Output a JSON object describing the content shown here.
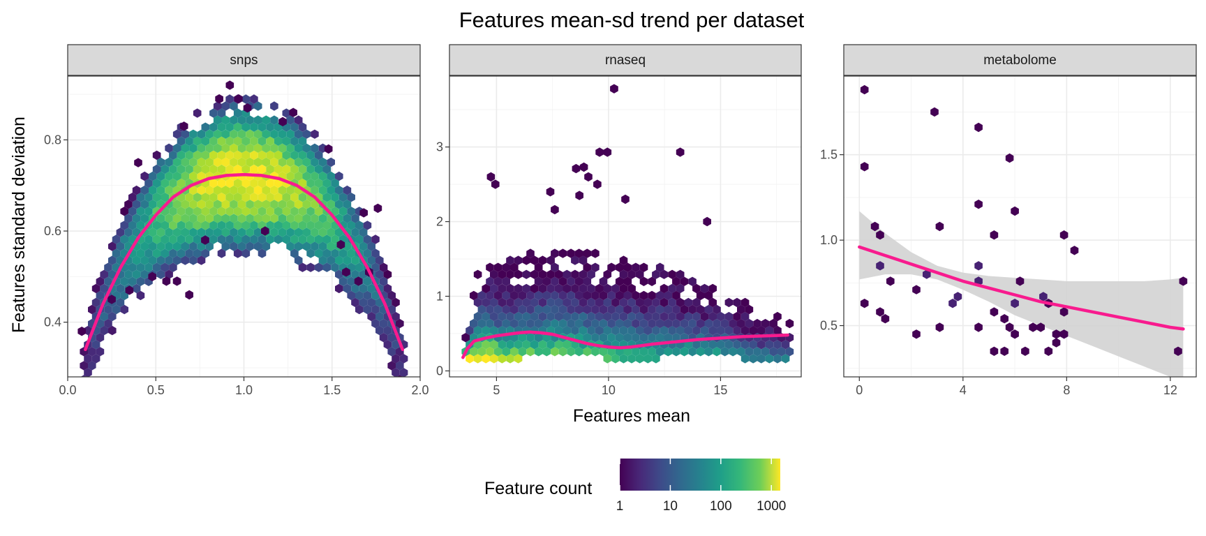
{
  "chart_data": {
    "type": "hexbin",
    "title": "Features mean-sd trend per dataset",
    "xlabel": "Features mean",
    "ylabel": "Features standard deviation",
    "legend": {
      "title": "Feature count",
      "position": "bottom",
      "scale": "log10",
      "breaks": [
        "1",
        "10",
        "100",
        "1000"
      ],
      "range": [
        1,
        1500
      ],
      "palette": [
        "#440154",
        "#3b528b",
        "#21908c",
        "#5dc963",
        "#fde725"
      ]
    },
    "trend_color": "#f81b8e",
    "ribbon_color": "#d3d3d3",
    "panels": [
      {
        "name": "snps",
        "xlim": [
          0,
          2
        ],
        "ylim": [
          0.28,
          0.94
        ],
        "xticks": [
          "0.0",
          "0.5",
          "1.0",
          "1.5",
          "2.0"
        ],
        "xtick_values": [
          0,
          0.5,
          1.0,
          1.5,
          2.0
        ],
        "yticks": [
          "0.4",
          "0.6",
          "0.8"
        ],
        "ytick_values": [
          0.4,
          0.6,
          0.8
        ],
        "trend": {
          "x": [
            0.1,
            0.2,
            0.3,
            0.4,
            0.5,
            0.6,
            0.7,
            0.8,
            0.9,
            1.0,
            1.1,
            1.2,
            1.3,
            1.4,
            1.5,
            1.6,
            1.7,
            1.8,
            1.9
          ],
          "y": [
            0.34,
            0.44,
            0.52,
            0.585,
            0.635,
            0.675,
            0.7,
            0.715,
            0.722,
            0.724,
            0.722,
            0.715,
            0.7,
            0.675,
            0.635,
            0.585,
            0.52,
            0.44,
            0.34
          ]
        },
        "ribbon": null,
        "hex_fill": "parabolic band around y = 2*sqrt(x/2*(1-x/2)), count peaks near x = 1",
        "outliers": [
          {
            "x": 0.92,
            "y": 0.92,
            "count": 1
          },
          {
            "x": 0.86,
            "y": 0.89,
            "count": 1
          },
          {
            "x": 0.97,
            "y": 0.89,
            "count": 1
          },
          {
            "x": 1.02,
            "y": 0.87,
            "count": 1
          },
          {
            "x": 1.28,
            "y": 0.86,
            "count": 1
          },
          {
            "x": 1.22,
            "y": 0.84,
            "count": 1
          },
          {
            "x": 0.66,
            "y": 0.83,
            "count": 1
          },
          {
            "x": 1.48,
            "y": 0.78,
            "count": 1
          },
          {
            "x": 0.4,
            "y": 0.75,
            "count": 1
          },
          {
            "x": 0.48,
            "y": 0.5,
            "count": 1
          },
          {
            "x": 0.56,
            "y": 0.49,
            "count": 1
          },
          {
            "x": 0.62,
            "y": 0.49,
            "count": 1
          },
          {
            "x": 0.69,
            "y": 0.46,
            "count": 1
          },
          {
            "x": 0.35,
            "y": 0.47,
            "count": 1
          },
          {
            "x": 0.78,
            "y": 0.58,
            "count": 1
          },
          {
            "x": 1.58,
            "y": 0.51,
            "count": 1
          },
          {
            "x": 1.65,
            "y": 0.49,
            "count": 1
          },
          {
            "x": 1.71,
            "y": 0.51,
            "count": 1
          },
          {
            "x": 1.76,
            "y": 0.65,
            "count": 1
          },
          {
            "x": 1.68,
            "y": 0.64,
            "count": 1
          },
          {
            "x": 1.12,
            "y": 0.6,
            "count": 1
          },
          {
            "x": 0.25,
            "y": 0.45,
            "count": 1
          },
          {
            "x": 0.08,
            "y": 0.38,
            "count": 1
          },
          {
            "x": 1.55,
            "y": 0.57,
            "count": 1
          }
        ]
      },
      {
        "name": "rnaseq",
        "xlim": [
          2.9,
          18.6
        ],
        "ylim": [
          -0.08,
          3.95
        ],
        "xticks": [
          "5",
          "10",
          "15"
        ],
        "xtick_values": [
          5,
          10,
          15
        ],
        "yticks": [
          "0",
          "1",
          "2",
          "3"
        ],
        "ytick_values": [
          0,
          1,
          2,
          3
        ],
        "trend": {
          "x": [
            3.5,
            3.7,
            4.0,
            4.5,
            5.0,
            5.5,
            6.0,
            6.5,
            7.0,
            7.5,
            8.0,
            8.5,
            9.0,
            9.5,
            10.0,
            10.5,
            11.0,
            11.5,
            12.0,
            13.0,
            14.0,
            15.0,
            16.0,
            17.0,
            18.0
          ],
          "y": [
            0.18,
            0.3,
            0.4,
            0.44,
            0.47,
            0.49,
            0.51,
            0.52,
            0.51,
            0.49,
            0.45,
            0.41,
            0.37,
            0.34,
            0.32,
            0.31,
            0.32,
            0.34,
            0.36,
            0.39,
            0.42,
            0.44,
            0.46,
            0.47,
            0.48
          ]
        },
        "ribbon": null,
        "hex_fill": "dense band near the trend with sparse scatter above, up to sd about 3",
        "outliers": [
          {
            "x": 10.25,
            "y": 3.78,
            "count": 1
          },
          {
            "x": 9.6,
            "y": 2.93,
            "count": 1
          },
          {
            "x": 9.95,
            "y": 2.93,
            "count": 1
          },
          {
            "x": 13.2,
            "y": 2.93,
            "count": 1
          },
          {
            "x": 8.9,
            "y": 2.73,
            "count": 1
          },
          {
            "x": 4.75,
            "y": 2.6,
            "count": 1
          },
          {
            "x": 4.95,
            "y": 2.5,
            "count": 1
          },
          {
            "x": 8.55,
            "y": 2.71,
            "count": 1
          },
          {
            "x": 9.1,
            "y": 2.6,
            "count": 1
          },
          {
            "x": 9.5,
            "y": 2.5,
            "count": 1
          },
          {
            "x": 7.4,
            "y": 2.4,
            "count": 1
          },
          {
            "x": 8.7,
            "y": 2.35,
            "count": 1
          },
          {
            "x": 10.75,
            "y": 2.3,
            "count": 1
          },
          {
            "x": 7.6,
            "y": 2.16,
            "count": 1
          },
          {
            "x": 14.4,
            "y": 2.0,
            "count": 1
          }
        ]
      },
      {
        "name": "metabolome",
        "xlim": [
          -0.6,
          13.0
        ],
        "ylim": [
          0.2,
          1.96
        ],
        "xticks": [
          "0",
          "4",
          "8",
          "12"
        ],
        "xtick_values": [
          0,
          4,
          8,
          12
        ],
        "yticks": [
          "0.5",
          "1.0",
          "1.5"
        ],
        "ytick_values": [
          0.5,
          1.0,
          1.5
        ],
        "trend": {
          "x": [
            0,
            1,
            2,
            3,
            4,
            5,
            6,
            7,
            8,
            9,
            10,
            11,
            12,
            12.5
          ],
          "y": [
            0.96,
            0.91,
            0.86,
            0.81,
            0.76,
            0.72,
            0.68,
            0.64,
            0.61,
            0.58,
            0.55,
            0.52,
            0.49,
            0.48
          ]
        },
        "ribbon": {
          "x": [
            0,
            1,
            2,
            3,
            4,
            5,
            6,
            7,
            8,
            9,
            10,
            11,
            12,
            12.5
          ],
          "lower": [
            0.77,
            0.8,
            0.8,
            0.77,
            0.71,
            0.64,
            0.56,
            0.5,
            0.44,
            0.38,
            0.32,
            0.26,
            0.2,
            0.17
          ],
          "upper": [
            1.17,
            1.04,
            0.93,
            0.85,
            0.81,
            0.79,
            0.78,
            0.77,
            0.76,
            0.76,
            0.76,
            0.76,
            0.77,
            0.78
          ]
        },
        "hex_fill": "sparse scatter of single features",
        "outliers": [
          {
            "x": 0.2,
            "y": 1.88,
            "count": 1
          },
          {
            "x": 0.2,
            "y": 1.43,
            "count": 1
          },
          {
            "x": 2.9,
            "y": 1.75,
            "count": 1
          },
          {
            "x": 4.6,
            "y": 1.66,
            "count": 1
          },
          {
            "x": 5.8,
            "y": 1.48,
            "count": 1
          },
          {
            "x": 4.6,
            "y": 1.21,
            "count": 1
          },
          {
            "x": 6.0,
            "y": 1.17,
            "count": 1
          },
          {
            "x": 0.6,
            "y": 1.08,
            "count": 1
          },
          {
            "x": 3.1,
            "y": 1.08,
            "count": 1
          },
          {
            "x": 0.8,
            "y": 1.03,
            "count": 1
          },
          {
            "x": 5.2,
            "y": 1.03,
            "count": 1
          },
          {
            "x": 7.9,
            "y": 1.03,
            "count": 1
          },
          {
            "x": 8.3,
            "y": 0.94,
            "count": 1
          },
          {
            "x": 0.8,
            "y": 0.85,
            "count": 2
          },
          {
            "x": 4.6,
            "y": 0.85,
            "count": 2
          },
          {
            "x": 2.6,
            "y": 0.8,
            "count": 2
          },
          {
            "x": 1.2,
            "y": 0.76,
            "count": 1
          },
          {
            "x": 4.6,
            "y": 0.76,
            "count": 2
          },
          {
            "x": 6.2,
            "y": 0.76,
            "count": 1
          },
          {
            "x": 12.5,
            "y": 0.76,
            "count": 1
          },
          {
            "x": 2.2,
            "y": 0.71,
            "count": 1
          },
          {
            "x": 3.8,
            "y": 0.67,
            "count": 2
          },
          {
            "x": 3.6,
            "y": 0.63,
            "count": 2
          },
          {
            "x": 0.2,
            "y": 0.63,
            "count": 1
          },
          {
            "x": 6.0,
            "y": 0.63,
            "count": 2
          },
          {
            "x": 7.1,
            "y": 0.67,
            "count": 2
          },
          {
            "x": 7.3,
            "y": 0.63,
            "count": 1
          },
          {
            "x": 0.8,
            "y": 0.58,
            "count": 1
          },
          {
            "x": 5.2,
            "y": 0.58,
            "count": 1
          },
          {
            "x": 7.9,
            "y": 0.58,
            "count": 1
          },
          {
            "x": 1.0,
            "y": 0.54,
            "count": 1
          },
          {
            "x": 5.6,
            "y": 0.54,
            "count": 1
          },
          {
            "x": 3.1,
            "y": 0.49,
            "count": 1
          },
          {
            "x": 4.6,
            "y": 0.49,
            "count": 1
          },
          {
            "x": 5.8,
            "y": 0.49,
            "count": 1
          },
          {
            "x": 6.7,
            "y": 0.49,
            "count": 1
          },
          {
            "x": 7.0,
            "y": 0.49,
            "count": 1
          },
          {
            "x": 2.2,
            "y": 0.45,
            "count": 1
          },
          {
            "x": 6.0,
            "y": 0.45,
            "count": 1
          },
          {
            "x": 7.6,
            "y": 0.45,
            "count": 1
          },
          {
            "x": 7.9,
            "y": 0.45,
            "count": 1
          },
          {
            "x": 5.2,
            "y": 0.35,
            "count": 1
          },
          {
            "x": 5.6,
            "y": 0.35,
            "count": 1
          },
          {
            "x": 6.4,
            "y": 0.35,
            "count": 1
          },
          {
            "x": 7.3,
            "y": 0.35,
            "count": 1
          },
          {
            "x": 12.3,
            "y": 0.35,
            "count": 1
          },
          {
            "x": 7.6,
            "y": 0.4,
            "count": 1
          }
        ]
      }
    ]
  }
}
